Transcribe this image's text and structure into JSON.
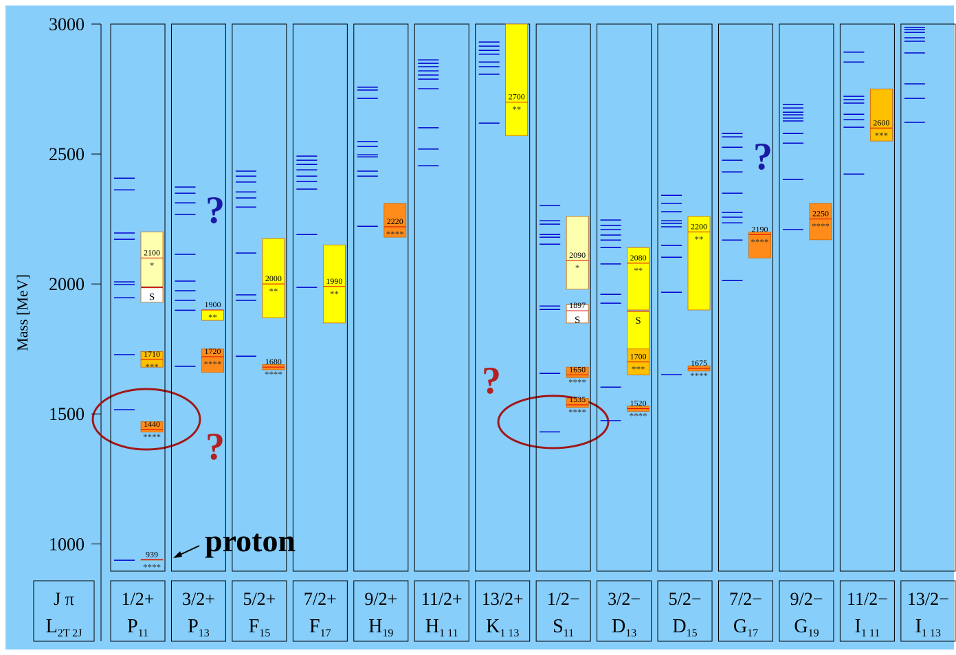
{
  "chart_data": {
    "type": "level-scheme",
    "y_label": "Mass [MeV]",
    "ylim": [
      895,
      3000
    ],
    "yticks": [
      1000,
      1500,
      2000,
      2500,
      3000
    ],
    "header_top": "J π",
    "header_letter": "L",
    "header_sub": "2T 2J",
    "model_color": "#0000cc",
    "line_color": "#dd0000",
    "annotation": "proton",
    "question_marks": [
      "?",
      "?",
      "?",
      "?"
    ],
    "question_colors": [
      "#b22222",
      "#1a1aa6",
      "#b22222",
      "#1a1aa6"
    ],
    "columns": [
      {
        "jp": "1/2+",
        "wave": "P",
        "sub": "11",
        "model": [
          2407,
          2362,
          2196,
          2172,
          2008,
          1997,
          1947,
          1728,
          1516,
          937
        ],
        "states": [
          {
            "mass": 939,
            "stars": "****",
            "low": 938,
            "high": 940,
            "color": "#dd0000"
          },
          {
            "mass": 1440,
            "stars": "****",
            "low": 1430,
            "high": 1470,
            "color": "#ff8c1a"
          },
          {
            "mass": 1710,
            "stars": "***",
            "low": 1680,
            "high": 1740,
            "color": "#ffc000"
          },
          {
            "mass": 1986,
            "stars": "S",
            "low": 1930,
            "high": 1985,
            "color": "#ffffff"
          },
          {
            "mass": 2100,
            "stars": "*",
            "low": 1990,
            "high": 2200,
            "color": "#ffffb0"
          }
        ]
      },
      {
        "jp": "3/2+",
        "wave": "P",
        "sub": "13",
        "model": [
          2373,
          2349,
          2312,
          2267,
          2114,
          2011,
          1974,
          1937,
          1899,
          1683
        ],
        "states": [
          {
            "mass": 1720,
            "stars": "****",
            "low": 1660,
            "high": 1750,
            "color": "#ff8c1a"
          },
          {
            "mass": 1900,
            "stars": "**",
            "low": 1860,
            "high": 1900,
            "color": "#ffff00"
          }
        ]
      },
      {
        "jp": "5/2+",
        "wave": "F",
        "sub": "15",
        "model": [
          2434,
          2415,
          2392,
          2354,
          2331,
          2296,
          2119,
          1958,
          1937,
          1722
        ],
        "states": [
          {
            "mass": 1680,
            "stars": "****",
            "low": 1670,
            "high": 1690,
            "color": "#ff8c1a"
          },
          {
            "mass": 2000,
            "stars": "**",
            "low": 1870,
            "high": 2175,
            "color": "#ffff00"
          }
        ]
      },
      {
        "jp": "7/2+",
        "wave": "F",
        "sub": "17",
        "model": [
          2492,
          2476,
          2460,
          2439,
          2415,
          2394,
          2365,
          2190,
          1987
        ],
        "states": [
          {
            "mass": 1990,
            "stars": "**",
            "low": 1850,
            "high": 2150,
            "color": "#ffff00"
          }
        ]
      },
      {
        "jp": "9/2+",
        "wave": "H",
        "sub": "19",
        "model": [
          2757,
          2746,
          2714,
          2548,
          2529,
          2497,
          2489,
          2434,
          2415,
          2222
        ],
        "states": [
          {
            "mass": 2220,
            "stars": "****",
            "low": 2180,
            "high": 2310,
            "color": "#ff8c1a"
          }
        ]
      },
      {
        "jp": "11/2+",
        "wave": "H",
        "sub": "1 11",
        "model": [
          2862,
          2849,
          2836,
          2820,
          2804,
          2788,
          2751,
          2601,
          2519,
          2455
        ],
        "states": []
      },
      {
        "jp": "13/2+",
        "wave": "K",
        "sub": "1 13",
        "model": [
          2931,
          2915,
          2899,
          2884,
          2854,
          2836,
          2807,
          2619
        ],
        "states": [
          {
            "mass": 2700,
            "stars": "**",
            "low": 2570,
            "high": 3000,
            "color": "#ffff00"
          }
        ]
      },
      {
        "jp": "1/2−",
        "wave": "S",
        "sub": "11",
        "model": [
          2302,
          2243,
          2230,
          2190,
          2180,
          2153,
          1915,
          1902,
          1656,
          1431
        ],
        "states": [
          {
            "mass": 1535,
            "stars": "****",
            "low": 1525,
            "high": 1560,
            "color": "#ff8c1a"
          },
          {
            "mass": 1650,
            "stars": "****",
            "low": 1640,
            "high": 1680,
            "color": "#ff8c1a"
          },
          {
            "mass": 1897,
            "stars": "S",
            "low": 1850,
            "high": 1920,
            "color": "#ffffff"
          },
          {
            "mass": 2090,
            "stars": "*",
            "low": 1980,
            "high": 2260,
            "color": "#ffffb0"
          }
        ]
      },
      {
        "jp": "3/2−",
        "wave": "D",
        "sub": "13",
        "model": [
          2246,
          2225,
          2209,
          2188,
          2169,
          2140,
          2077,
          1960,
          1926,
          1603,
          1474
        ],
        "states": [
          {
            "mass": 1520,
            "stars": "****",
            "low": 1510,
            "high": 1530,
            "color": "#ff8c1a"
          },
          {
            "mass": 1700,
            "stars": "***",
            "low": 1650,
            "high": 1750,
            "color": "#ffc000"
          },
          {
            "mass": 1895,
            "stars": "S",
            "low": 1750,
            "high": 1895,
            "color": "#ffff00"
          },
          {
            "mass": 2080,
            "stars": "**",
            "low": 1900,
            "high": 2140,
            "color": "#ffff00"
          }
        ]
      },
      {
        "jp": "5/2−",
        "wave": "D",
        "sub": "15",
        "model": [
          2341,
          2310,
          2278,
          2243,
          2233,
          2220,
          2148,
          2103,
          1968,
          1651
        ],
        "states": [
          {
            "mass": 1675,
            "stars": "****",
            "low": 1665,
            "high": 1685,
            "color": "#ff8c1a"
          },
          {
            "mass": 2200,
            "stars": "**",
            "low": 1900,
            "high": 2260,
            "color": "#ffff00"
          }
        ]
      },
      {
        "jp": "7/2−",
        "wave": "G",
        "sub": "17",
        "model": [
          2579,
          2566,
          2526,
          2476,
          2431,
          2349,
          2275,
          2257,
          2235,
          2169,
          2013
        ],
        "states": [
          {
            "mass": 2190,
            "stars": "****",
            "low": 2100,
            "high": 2200,
            "color": "#ff8c1a"
          }
        ]
      },
      {
        "jp": "9/2−",
        "wave": "G",
        "sub": "19",
        "model": [
          2690,
          2677,
          2661,
          2651,
          2638,
          2627,
          2579,
          2542,
          2402,
          2209
        ],
        "states": [
          {
            "mass": 2250,
            "stars": "****",
            "low": 2170,
            "high": 2310,
            "color": "#ff8c1a"
          }
        ]
      },
      {
        "jp": "11/2−",
        "wave": "I",
        "sub": "1 11",
        "model": [
          2892,
          2854,
          2722,
          2709,
          2696,
          2653,
          2632,
          2603,
          2423
        ],
        "states": [
          {
            "mass": 2600,
            "stars": "***",
            "low": 2550,
            "high": 2750,
            "color": "#ffc000"
          }
        ]
      },
      {
        "jp": "13/2−",
        "wave": "I",
        "sub": "1 13",
        "model": [
          2987,
          2979,
          2968,
          2947,
          2934,
          2889,
          2770,
          2714,
          2622
        ],
        "states": []
      }
    ]
  }
}
